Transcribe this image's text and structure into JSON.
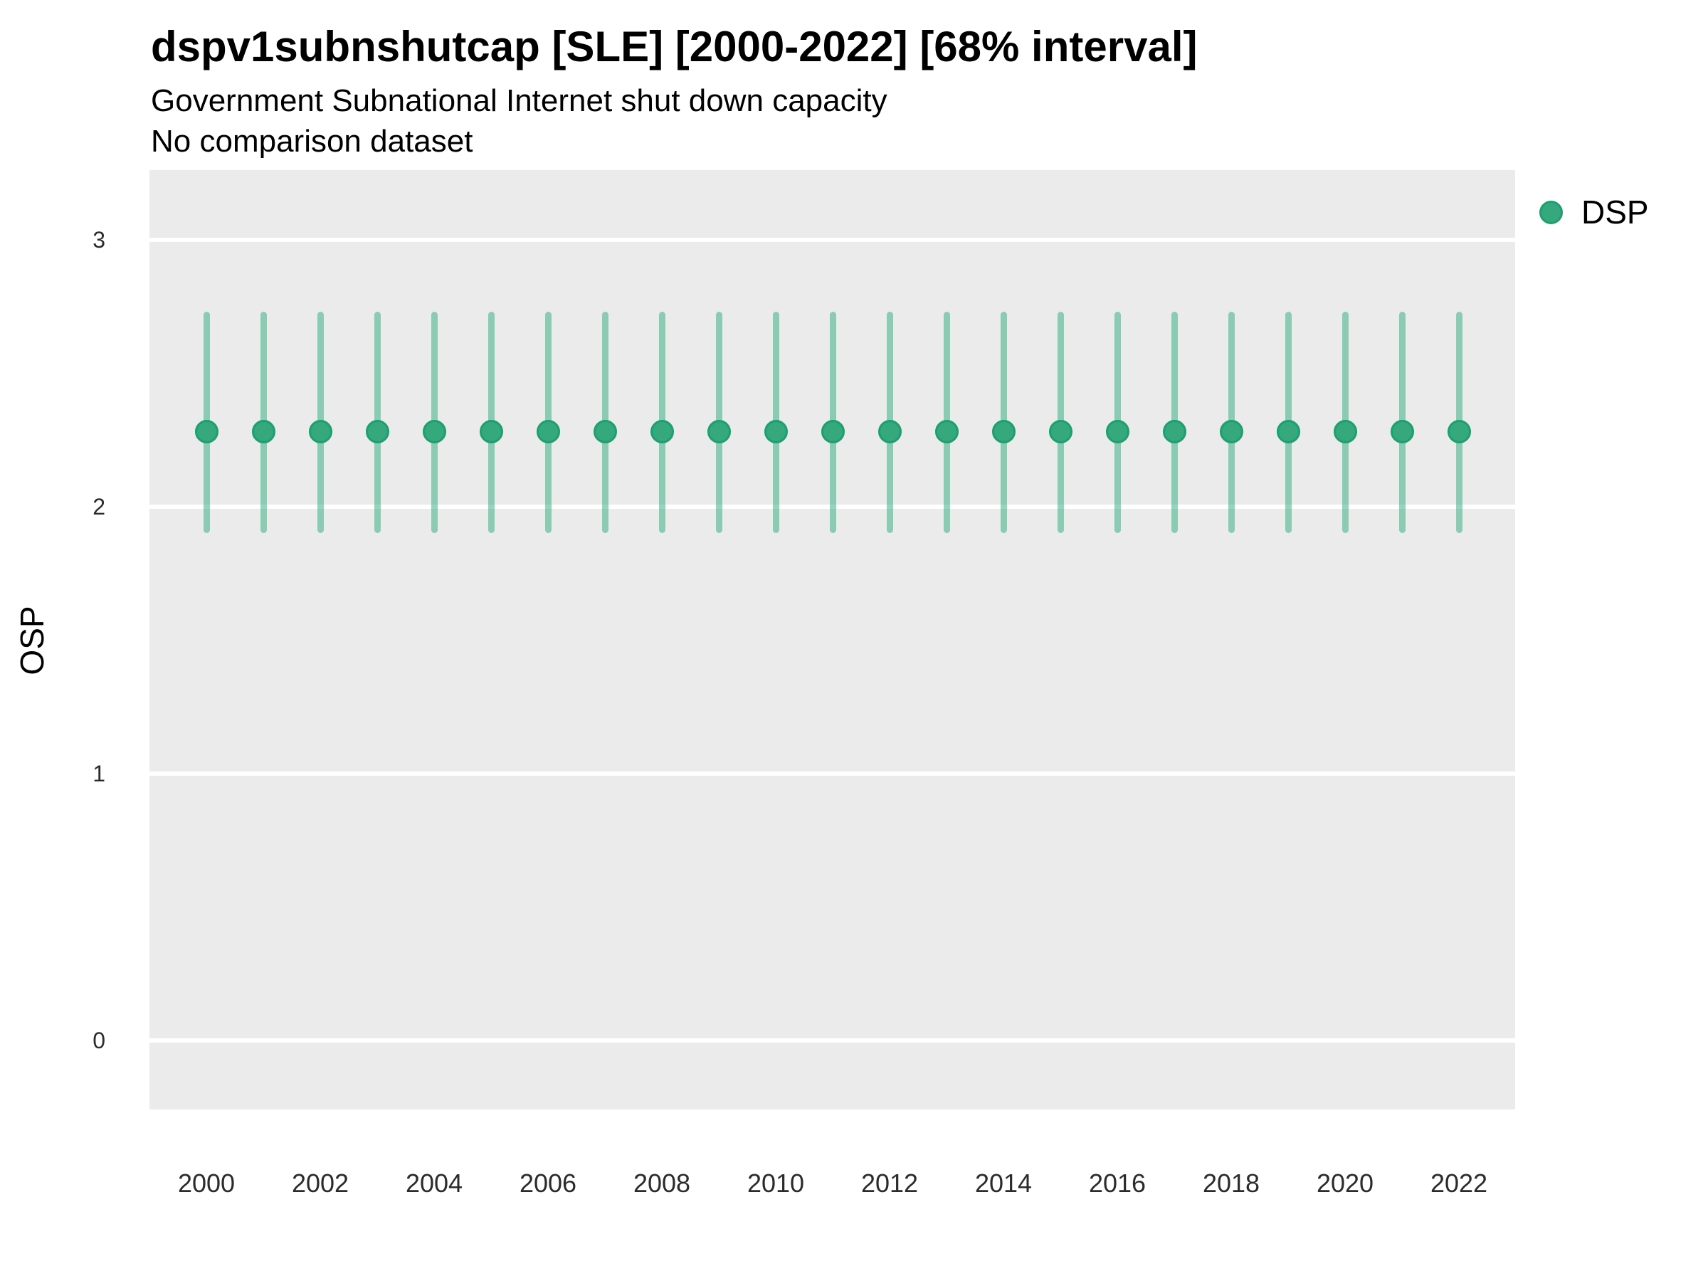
{
  "figure": {
    "title": "dspv1subnshutcap [SLE] [2000-2022] [68% interval]",
    "subtitle": "Government Subnational Internet shut down capacity",
    "note": "No comparison dataset",
    "y_axis_title": "OSP",
    "legend": {
      "position": "right",
      "items": [
        {
          "label": "DSP",
          "dot_fill": "#35A87D",
          "dot_stroke": "#1F9E6E"
        }
      ]
    },
    "colors": {
      "panel_background": "#EBEBEB",
      "gridline": "#FFFFFF",
      "point_fill": "#35A87D",
      "point_stroke": "#1F9E6E",
      "interval_bar": "rgba(47,167,124,0.5)",
      "text": "#000000",
      "axis_text": "#2B2B2B"
    }
  },
  "chart_data": {
    "type": "scatter",
    "variant": "pointrange-68pct-interval",
    "title": "dspv1subnshutcap [SLE] [2000-2022] [68% interval]",
    "subtitle": "Government Subnational Internet shut down capacity",
    "annotation": "No comparison dataset",
    "xlabel": "",
    "ylabel": "OSP",
    "legend_position": "right",
    "grid": "horizontal-major-only",
    "ylim": [
      -0.26,
      3.26
    ],
    "yticks": [
      0,
      1,
      2,
      3
    ],
    "xticks": [
      2000,
      2002,
      2004,
      2006,
      2008,
      2010,
      2012,
      2014,
      2016,
      2018,
      2020,
      2022
    ],
    "x": [
      2000,
      2001,
      2002,
      2003,
      2004,
      2005,
      2006,
      2007,
      2008,
      2009,
      2010,
      2011,
      2012,
      2013,
      2014,
      2015,
      2016,
      2017,
      2018,
      2019,
      2020,
      2021,
      2022
    ],
    "series": [
      {
        "name": "DSP",
        "color": "#35A87D",
        "values": [
          2.28,
          2.28,
          2.28,
          2.28,
          2.28,
          2.28,
          2.28,
          2.28,
          2.28,
          2.28,
          2.28,
          2.28,
          2.28,
          2.28,
          2.28,
          2.28,
          2.28,
          2.28,
          2.28,
          2.28,
          2.28,
          2.28,
          2.28
        ],
        "lower": [
          1.9,
          1.9,
          1.9,
          1.9,
          1.9,
          1.9,
          1.9,
          1.9,
          1.9,
          1.9,
          1.9,
          1.9,
          1.9,
          1.9,
          1.9,
          1.9,
          1.9,
          1.9,
          1.9,
          1.9,
          1.9,
          1.9,
          1.9
        ],
        "upper": [
          2.73,
          2.73,
          2.73,
          2.73,
          2.73,
          2.73,
          2.73,
          2.73,
          2.73,
          2.73,
          2.73,
          2.73,
          2.73,
          2.73,
          2.73,
          2.73,
          2.73,
          2.73,
          2.73,
          2.73,
          2.73,
          2.73,
          2.73
        ]
      }
    ]
  }
}
